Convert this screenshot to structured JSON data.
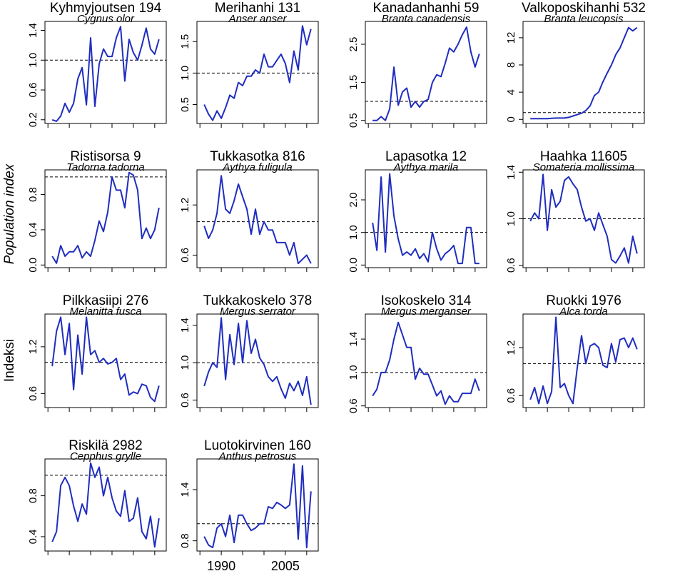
{
  "axis_labels": {
    "en": "Population index",
    "fi": "Indeksi"
  },
  "chart_data": [
    {
      "type": "line",
      "title": "Kyhmyjoutsen 194",
      "subtitle": "Cygnus olor",
      "color": "#1f2dbf",
      "hline": 1,
      "x": [
        1986,
        1987,
        1988,
        1989,
        1990,
        1991,
        1992,
        1993,
        1994,
        1995,
        1996,
        1997,
        1998,
        1999,
        2000,
        2001,
        2002,
        2003,
        2004,
        2005,
        2006,
        2007,
        2008,
        2009,
        2010,
        2011
      ],
      "values": [
        0.2,
        0.18,
        0.25,
        0.42,
        0.3,
        0.42,
        0.75,
        0.9,
        0.4,
        1.3,
        0.38,
        0.95,
        1.15,
        1.05,
        1.05,
        1.3,
        1.45,
        0.72,
        1.28,
        1.1,
        1.0,
        1.2,
        1.43,
        1.15,
        1.08,
        1.28
      ],
      "xlim": [
        1984.3,
        2012.7
      ],
      "xticks": [
        1985,
        1990,
        1995,
        2000,
        2005,
        2010
      ],
      "ylim": [
        0.15,
        1.52
      ],
      "yticks": [
        0.2,
        0.6,
        {
          "value": 1,
          "label": "1.0"
        },
        1.4
      ]
    },
    {
      "type": "line",
      "title": "Merihanhi 131",
      "subtitle": "Anser anser",
      "color": "#1f2dbf",
      "hline": 1,
      "x": [
        1986,
        1987,
        1988,
        1989,
        1990,
        1991,
        1992,
        1993,
        1994,
        1995,
        1996,
        1997,
        1998,
        1999,
        2000,
        2001,
        2002,
        2003,
        2004,
        2005,
        2006,
        2007,
        2008,
        2009,
        2010,
        2011
      ],
      "values": [
        0.5,
        0.35,
        0.25,
        0.4,
        0.28,
        0.45,
        0.65,
        0.6,
        0.85,
        0.8,
        0.95,
        0.95,
        1.05,
        1.0,
        1.3,
        1.1,
        1.1,
        1.2,
        1.3,
        1.15,
        0.85,
        1.35,
        1.05,
        1.75,
        1.45,
        1.7
      ],
      "xlim": [
        1984.3,
        2012.7
      ],
      "xticks": [
        1985,
        1990,
        1995,
        2000,
        2005,
        2010
      ],
      "ylim": [
        0.2,
        1.82
      ],
      "yticks": [
        0.5,
        {
          "value": 1,
          "label": "1.0"
        },
        1.5
      ]
    },
    {
      "type": "line",
      "title": "Kanadanhanhi 59",
      "subtitle": "Branta canadensis",
      "color": "#1f2dbf",
      "hline": 1,
      "x": [
        1986,
        1987,
        1988,
        1989,
        1990,
        1991,
        1992,
        1993,
        1994,
        1995,
        1996,
        1997,
        1998,
        1999,
        2000,
        2001,
        2002,
        2003,
        2004,
        2005,
        2006,
        2007,
        2008,
        2009,
        2010,
        2011
      ],
      "values": [
        0.5,
        0.5,
        0.6,
        0.5,
        0.8,
        1.9,
        0.9,
        1.25,
        1.35,
        0.85,
        1.0,
        0.85,
        1.0,
        1.05,
        1.5,
        1.7,
        1.65,
        2.0,
        2.4,
        2.3,
        2.5,
        2.75,
        2.95,
        2.3,
        1.9,
        2.25
      ],
      "xlim": [
        1984.3,
        2012.7
      ],
      "xticks": [
        1985,
        1990,
        1995,
        2000,
        2005,
        2010
      ],
      "ylim": [
        0.42,
        3.1
      ],
      "yticks": [
        0.5,
        1.5,
        2.5
      ]
    },
    {
      "type": "line",
      "title": "Valkoposkihanhi 532",
      "subtitle": "Branta leucopsis",
      "color": "#1f2dbf",
      "hline": 1,
      "x": [
        1986,
        1987,
        1988,
        1989,
        1990,
        1991,
        1992,
        1993,
        1994,
        1995,
        1996,
        1997,
        1998,
        1999,
        2000,
        2001,
        2002,
        2003,
        2004,
        2005,
        2006,
        2007,
        2008,
        2009,
        2010,
        2011
      ],
      "values": [
        0.1,
        0.1,
        0.1,
        0.1,
        0.1,
        0.15,
        0.2,
        0.2,
        0.2,
        0.3,
        0.5,
        0.7,
        0.9,
        1.3,
        2,
        3.5,
        4,
        5.5,
        6.8,
        8,
        9.5,
        10.5,
        12,
        13.5,
        13,
        13.5
      ],
      "xlim": [
        1984.3,
        2012.7
      ],
      "xticks": [
        1985,
        1990,
        1995,
        2000,
        2005,
        2010
      ],
      "ylim": [
        -0.6,
        14.4
      ],
      "yticks": [
        0,
        4,
        8,
        12
      ]
    },
    {
      "type": "line",
      "title": "Ristisorsa 9",
      "subtitle": "Tadorna tadorna",
      "color": "#1f2dbf",
      "hline": 1,
      "x": [
        1986,
        1987,
        1988,
        1989,
        1990,
        1991,
        1992,
        1993,
        1994,
        1995,
        1996,
        1997,
        1998,
        1999,
        2000,
        2001,
        2002,
        2003,
        2004,
        2005,
        2006,
        2007,
        2008,
        2009,
        2010,
        2011
      ],
      "values": [
        0.1,
        0.02,
        0.22,
        0.1,
        0.15,
        0.15,
        0.22,
        0.08,
        0.15,
        0.1,
        0.28,
        0.5,
        0.38,
        0.6,
        1.0,
        0.85,
        0.85,
        0.65,
        1.05,
        1.02,
        0.85,
        0.3,
        0.42,
        0.3,
        0.4,
        0.65
      ],
      "xlim": [
        1984.3,
        2012.7
      ],
      "xticks": [
        1985,
        1990,
        1995,
        2000,
        2005,
        2010
      ],
      "ylim": [
        -0.03,
        1.08
      ],
      "yticks": [
        {
          "value": 0,
          "label": "0.0"
        },
        0.4,
        0.8
      ]
    },
    {
      "type": "line",
      "title": "Tukkasotka 816",
      "subtitle": "Aythya fuligula",
      "color": "#1f2dbf",
      "hline": 1,
      "x": [
        1986,
        1987,
        1988,
        1989,
        1990,
        1991,
        1992,
        1993,
        1994,
        1995,
        1996,
        1997,
        1998,
        1999,
        2000,
        2001,
        2002,
        2003,
        2004,
        2005,
        2006,
        2007,
        2008,
        2009,
        2010,
        2011
      ],
      "values": [
        0.95,
        0.8,
        0.9,
        1.1,
        1.55,
        1.15,
        1.1,
        1.25,
        1.45,
        1.3,
        1.15,
        0.85,
        1.15,
        0.85,
        1.0,
        0.9,
        0.9,
        0.75,
        0.75,
        0.75,
        0.6,
        0.75,
        0.5,
        0.55,
        0.6,
        0.5
      ],
      "xlim": [
        1984.3,
        2012.7
      ],
      "xticks": [
        1985,
        1990,
        1995,
        2000,
        2005,
        2010
      ],
      "ylim": [
        0.45,
        1.62
      ],
      "yticks": [
        0.6,
        1.2
      ]
    },
    {
      "type": "line",
      "title": "Lapasotka 12",
      "subtitle": "Aythya marila",
      "color": "#1f2dbf",
      "hline": 1,
      "x": [
        1986,
        1987,
        1988,
        1989,
        1990,
        1991,
        1992,
        1993,
        1994,
        1995,
        1996,
        1997,
        1998,
        1999,
        2000,
        2001,
        2002,
        2003,
        2004,
        2005,
        2006,
        2007,
        2008,
        2009,
        2010,
        2011
      ],
      "values": [
        1.3,
        0.45,
        2.7,
        0.4,
        2.8,
        1.5,
        0.8,
        0.3,
        0.4,
        0.3,
        0.5,
        0.2,
        0.35,
        0.1,
        1.0,
        0.5,
        0.15,
        0.35,
        0.45,
        0.6,
        0.05,
        0.05,
        1.15,
        1.15,
        0.05,
        0.05
      ],
      "xlim": [
        1984.3,
        2012.7
      ],
      "xticks": [
        1985,
        1990,
        1995,
        2000,
        2005,
        2010
      ],
      "ylim": [
        -0.08,
        2.92
      ],
      "yticks": [
        {
          "value": 0,
          "label": "0.0"
        },
        {
          "value": 1,
          "label": "1.0"
        },
        {
          "value": 2,
          "label": "2.0"
        }
      ]
    },
    {
      "type": "line",
      "title": "Haahka 11605",
      "subtitle": "Somateria mollissima",
      "color": "#1f2dbf",
      "hline": 1,
      "x": [
        1986,
        1987,
        1988,
        1989,
        1990,
        1991,
        1992,
        1993,
        1994,
        1995,
        1996,
        1997,
        1998,
        1999,
        2000,
        2001,
        2002,
        2003,
        2004,
        2005,
        2006,
        2007,
        2008,
        2009,
        2010,
        2011
      ],
      "values": [
        0.98,
        1.05,
        1.0,
        1.38,
        0.9,
        1.25,
        1.1,
        1.15,
        1.33,
        1.36,
        1.3,
        1.25,
        1.1,
        0.98,
        1.0,
        0.9,
        1.05,
        0.95,
        0.85,
        0.65,
        0.62,
        0.68,
        0.75,
        0.62,
        0.85,
        0.7
      ],
      "xlim": [
        1984.3,
        2012.7
      ],
      "xticks": [
        1985,
        1990,
        1995,
        2000,
        2005,
        2010
      ],
      "ylim": [
        0.58,
        1.42
      ],
      "yticks": [
        0.6,
        {
          "value": 1,
          "label": "1.0"
        },
        1.4
      ]
    },
    {
      "type": "line",
      "title": "Pilkkasiipi 276",
      "subtitle": "Melanitta fusca",
      "color": "#1f2dbf",
      "hline": 1,
      "x": [
        1986,
        1987,
        1988,
        1989,
        1990,
        1991,
        1992,
        1993,
        1994,
        1995,
        1996,
        1997,
        1998,
        1999,
        2000,
        2001,
        2002,
        2003,
        2004,
        2005,
        2006,
        2007,
        2008,
        2009,
        2010,
        2011
      ],
      "values": [
        0.95,
        1.4,
        1.58,
        1.1,
        1.5,
        0.65,
        1.35,
        0.85,
        1.58,
        1.1,
        1.15,
        1.0,
        1.05,
        0.98,
        1.0,
        1.05,
        0.78,
        0.85,
        0.58,
        0.62,
        0.6,
        0.72,
        0.7,
        0.55,
        0.5,
        0.7
      ],
      "xlim": [
        1984.3,
        2012.7
      ],
      "xticks": [
        1985,
        1990,
        1995,
        2000,
        2005,
        2010
      ],
      "ylim": [
        0.42,
        1.62
      ],
      "yticks": [
        0.6,
        1.2
      ]
    },
    {
      "type": "line",
      "title": "Tukkakoskelo 378",
      "subtitle": "Mergus serrator",
      "color": "#1f2dbf",
      "hline": 1,
      "x": [
        1986,
        1987,
        1988,
        1989,
        1990,
        1991,
        1992,
        1993,
        1994,
        1995,
        1996,
        1997,
        1998,
        1999,
        2000,
        2001,
        2002,
        2003,
        2004,
        2005,
        2006,
        2007,
        2008,
        2009,
        2010,
        2011
      ],
      "values": [
        0.75,
        0.9,
        1.0,
        0.95,
        1.48,
        0.82,
        1.3,
        0.98,
        1.42,
        1.0,
        1.45,
        1.1,
        1.25,
        1.05,
        0.98,
        0.85,
        0.8,
        0.85,
        0.72,
        0.62,
        0.78,
        0.7,
        0.8,
        0.65,
        0.85,
        0.55
      ],
      "xlim": [
        1984.3,
        2012.7
      ],
      "xticks": [
        1985,
        1990,
        1995,
        2000,
        2005,
        2010
      ],
      "ylim": [
        0.52,
        1.52
      ],
      "yticks": [
        0.6,
        {
          "value": 1,
          "label": "1.0"
        },
        1.4
      ]
    },
    {
      "type": "line",
      "title": "Isokoskelo 314",
      "subtitle": "Mergus merganser",
      "color": "#1f2dbf",
      "hline": 1,
      "x": [
        1986,
        1987,
        1988,
        1989,
        1990,
        1991,
        1992,
        1993,
        1994,
        1995,
        1996,
        1997,
        1998,
        1999,
        2000,
        2001,
        2002,
        2003,
        2004,
        2005,
        2006,
        2007,
        2008,
        2009,
        2010,
        2011
      ],
      "values": [
        0.72,
        0.8,
        1.0,
        1.0,
        1.15,
        1.4,
        1.6,
        1.45,
        1.3,
        1.3,
        0.92,
        1.05,
        0.98,
        0.98,
        0.85,
        0.72,
        0.78,
        0.62,
        0.72,
        0.65,
        0.65,
        0.75,
        0.75,
        0.75,
        0.92,
        0.78
      ],
      "xlim": [
        1984.3,
        2012.7
      ],
      "xticks": [
        1985,
        1990,
        1995,
        2000,
        2005,
        2010
      ],
      "ylim": [
        0.58,
        1.7
      ],
      "yticks": [
        0.6,
        {
          "value": 1,
          "label": "1.0"
        },
        1.4
      ]
    },
    {
      "type": "line",
      "title": "Ruokki 1976",
      "subtitle": "Alca torda",
      "color": "#1f2dbf",
      "hline": 1,
      "x": [
        1986,
        1987,
        1988,
        1989,
        1990,
        1991,
        1992,
        1993,
        1994,
        1995,
        1996,
        1997,
        1998,
        1999,
        2000,
        2001,
        2002,
        2003,
        2004,
        2005,
        2006,
        2007,
        2008,
        2009,
        2010,
        2011
      ],
      "values": [
        0.55,
        0.7,
        0.5,
        0.72,
        0.5,
        0.65,
        1.58,
        0.7,
        0.75,
        0.6,
        0.5,
        0.95,
        1.35,
        1.0,
        1.22,
        1.25,
        1.2,
        0.98,
        0.95,
        1.25,
        1.02,
        1.3,
        1.32,
        1.2,
        1.32,
        1.18
      ],
      "xlim": [
        1984.3,
        2012.7
      ],
      "xticks": [
        1985,
        1990,
        1995,
        2000,
        2005,
        2010
      ],
      "ylim": [
        0.45,
        1.62
      ],
      "yticks": [
        0.6,
        1.2
      ]
    },
    {
      "type": "line",
      "title": "Riskilä 2982",
      "subtitle": "Cepphus grylle",
      "color": "#1f2dbf",
      "hline": 1,
      "x": [
        1986,
        1987,
        1988,
        1989,
        1990,
        1991,
        1992,
        1993,
        1994,
        1995,
        1996,
        1997,
        1998,
        1999,
        2000,
        2001,
        2002,
        2003,
        2004,
        2005,
        2006,
        2007,
        2008,
        2009,
        2010,
        2011
      ],
      "values": [
        0.35,
        0.45,
        0.9,
        0.98,
        0.9,
        0.7,
        0.55,
        0.72,
        0.62,
        1.12,
        0.98,
        1.08,
        0.8,
        0.98,
        0.78,
        0.65,
        0.6,
        0.85,
        0.55,
        0.58,
        0.78,
        0.45,
        0.38,
        0.6,
        0.3,
        0.58
      ],
      "xlim": [
        1984.3,
        2012.7
      ],
      "xticks": [
        1985,
        1990,
        1995,
        2000,
        2005,
        2010
      ],
      "ylim": [
        0.26,
        1.16
      ],
      "yticks": [
        0.4,
        0.8
      ]
    },
    {
      "type": "line",
      "title": "Luotokirvinen 160",
      "subtitle": "Anthus petrosus",
      "color": "#1f2dbf",
      "hline": 1,
      "x": [
        1986,
        1987,
        1988,
        1989,
        1990,
        1991,
        1992,
        1993,
        1994,
        1995,
        1996,
        1997,
        1998,
        1999,
        2000,
        2001,
        2002,
        2003,
        2004,
        2005,
        2006,
        2007,
        2008,
        2009,
        2010,
        2011
      ],
      "values": [
        0.85,
        0.75,
        0.72,
        0.95,
        1.0,
        0.85,
        1.1,
        0.78,
        1.1,
        1.1,
        1.0,
        0.92,
        0.95,
        1.0,
        1.0,
        1.2,
        1.18,
        1.25,
        1.22,
        1.18,
        1.22,
        1.7,
        0.82,
        1.68,
        0.72,
        1.38
      ],
      "xlim": [
        1984.3,
        2012.7
      ],
      "xticks": [
        1985,
        1990,
        1995,
        2000,
        2005,
        2010
      ],
      "xticklabels": [
        1990,
        2005
      ],
      "ylim": [
        0.68,
        1.76
      ],
      "yticks": [
        0.8,
        1.4
      ]
    }
  ]
}
